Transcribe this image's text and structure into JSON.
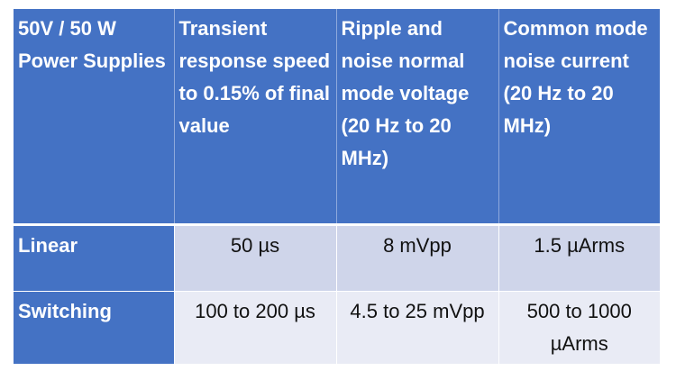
{
  "table": {
    "headers": [
      "50V / 50 W Power Supplies",
      "Transient response speed to 0.15% of final value",
      "Ripple and noise normal mode voltage (20 Hz to 20 MHz)",
      "Common mode noise current (20 Hz to 20 MHz)"
    ],
    "rows": [
      {
        "label": "Linear",
        "cells": [
          "50 µs",
          "8 mVpp",
          "1.5 µArms"
        ]
      },
      {
        "label": "Switching",
        "cells": [
          "100 to 200 µs",
          "4.5 to 25 mVpp",
          "500 to 1000 µArms"
        ]
      }
    ],
    "colors": {
      "header": "#4472c4",
      "row1": "#cfd5ea",
      "row2": "#e9ebf5"
    }
  }
}
